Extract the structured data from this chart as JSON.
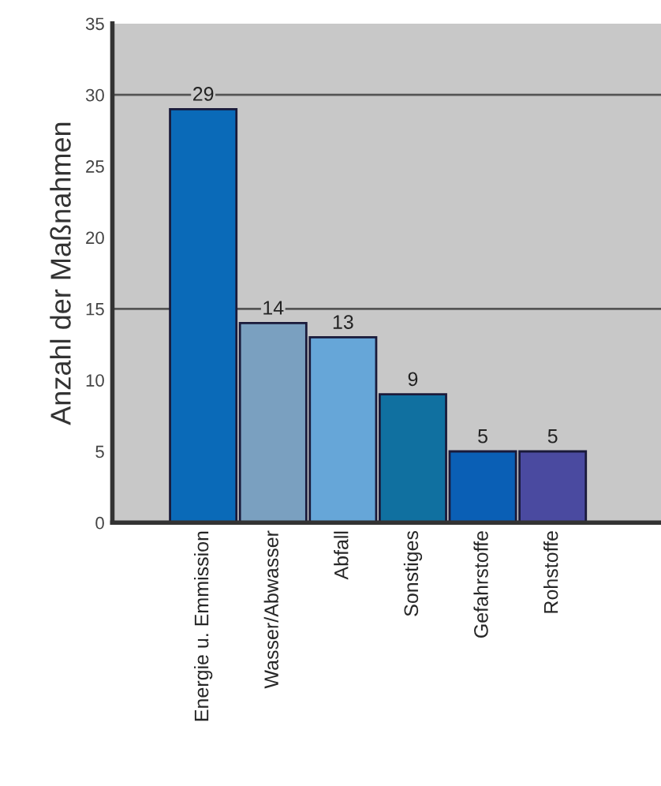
{
  "chart_data": {
    "type": "bar",
    "ylabel": "Anzahl der Maßnahmen",
    "categories": [
      "Energie u. Emmission",
      "Wasser/Abwasser",
      "Abfall",
      "Sonstiges",
      "Gefahrstoffe",
      "Rohstoffe"
    ],
    "values": [
      29,
      14,
      13,
      9,
      5,
      5
    ],
    "colors": [
      "#0a6ab8",
      "#7aa0c0",
      "#66a6d8",
      "#1070a0",
      "#0a5fb5",
      "#4a4aa0"
    ],
    "data_labels": true,
    "ylim": [
      0,
      35
    ],
    "yticks": [
      0,
      5,
      10,
      15,
      20,
      25,
      30,
      35
    ],
    "ref_lines": [
      {
        "axis": "y",
        "value": 15,
        "color": "#555555"
      },
      {
        "axis": "y",
        "value": 30,
        "color": "#555555"
      }
    ],
    "grid": false
  }
}
